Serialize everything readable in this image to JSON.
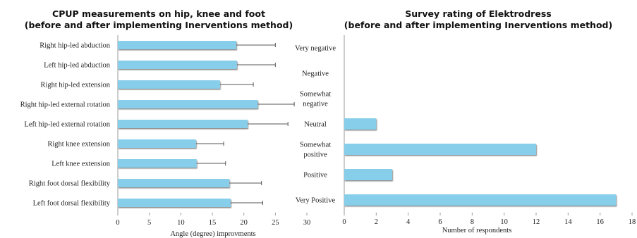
{
  "chart_data": [
    {
      "type": "bar",
      "orientation": "horizontal",
      "title": [
        "CPUP measurements on hip, knee and foot",
        "(before and after implementing Inerventions method)"
      ],
      "categories": [
        "Right hip-led abduction",
        "Left hip-led abduction",
        "Right hip-led extension",
        "Right hip-led external rotation",
        "Left hip-led external rotation",
        "Right knee extension",
        "Left knee extension",
        "Right foot dorsal flexibility",
        "Left foot dorsal flexibility"
      ],
      "values": [
        18.8,
        18.9,
        16.2,
        22.2,
        20.6,
        12.4,
        12.5,
        17.7,
        17.9
      ],
      "error_plus": [
        6.2,
        6.1,
        5.3,
        5.8,
        6.4,
        4.4,
        4.6,
        5.1,
        5.1
      ],
      "xlabel": "Angle (degree) improvments",
      "ylabel": "",
      "xlim": [
        0,
        30
      ],
      "xticks": [
        0,
        5,
        10,
        15,
        20,
        25,
        30
      ],
      "grid": false,
      "legend": "none",
      "bar_color": "#87CEEB"
    },
    {
      "type": "bar",
      "orientation": "horizontal",
      "title": [
        "Survey rating of Elektrodress",
        "(before and after implementing Inerventions method)"
      ],
      "categories": [
        [
          "Very negative"
        ],
        [
          "Negative"
        ],
        [
          "Somewhat",
          "negative"
        ],
        [
          "Neutral"
        ],
        [
          "Somewhat",
          "positive"
        ],
        [
          "Positive"
        ],
        [
          "Very Positive"
        ]
      ],
      "values": [
        0,
        0,
        0,
        2,
        12,
        3,
        17
      ],
      "xlabel": "Number of respondents",
      "ylabel": "",
      "xlim": [
        0,
        18
      ],
      "xticks": [
        0,
        2,
        4,
        6,
        8,
        10,
        12,
        14,
        16,
        18
      ],
      "grid": false,
      "legend": "none",
      "bar_color": "#87CEEB"
    }
  ]
}
